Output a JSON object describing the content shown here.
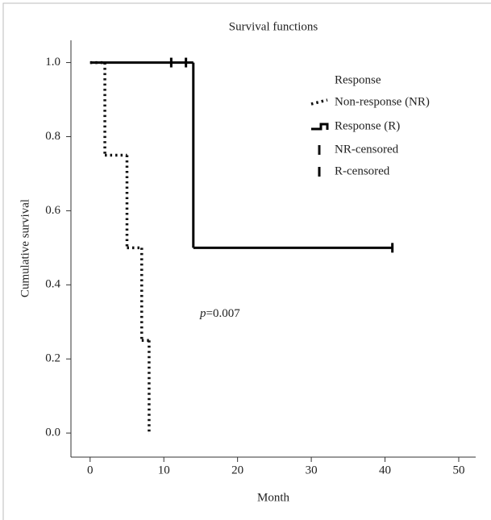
{
  "chart_data": {
    "type": "survival",
    "title": "Survival functions",
    "xlabel": "Month",
    "ylabel": "Cumulative survival",
    "xlim": [
      -2.6,
      52.3
    ],
    "ylim": [
      -0.065,
      1.06
    ],
    "xticks": [
      0,
      10,
      20,
      30,
      40,
      50
    ],
    "yticks": [
      {
        "value": 0,
        "label": "0.0"
      },
      {
        "value": 0.2,
        "label": "0.2"
      },
      {
        "value": 0.4,
        "label": "0.4"
      },
      {
        "value": 0.6,
        "label": "0.6"
      },
      {
        "value": 0.8,
        "label": "0.8"
      },
      {
        "value": 1,
        "label": "1.0"
      }
    ],
    "legend_title": "Response",
    "series": [
      {
        "name": "Non-response (NR)",
        "color": "#111111",
        "style": "dotted",
        "x": [
          0,
          2,
          5,
          7,
          8
        ],
        "values": [
          1,
          0.75,
          0.5,
          0.25,
          0
        ]
      },
      {
        "name": "Response (R)",
        "color": "#000000",
        "style": "solid",
        "x": [
          0,
          14
        ],
        "values": [
          1,
          0.5
        ],
        "censored": {
          "name": "R-censored",
          "x": [
            11,
            13,
            41
          ],
          "values": [
            1,
            1,
            0.5
          ]
        }
      }
    ],
    "extra_legend": [
      "NR-censored"
    ],
    "annotation": [
      "p",
      "=0.007"
    ]
  }
}
